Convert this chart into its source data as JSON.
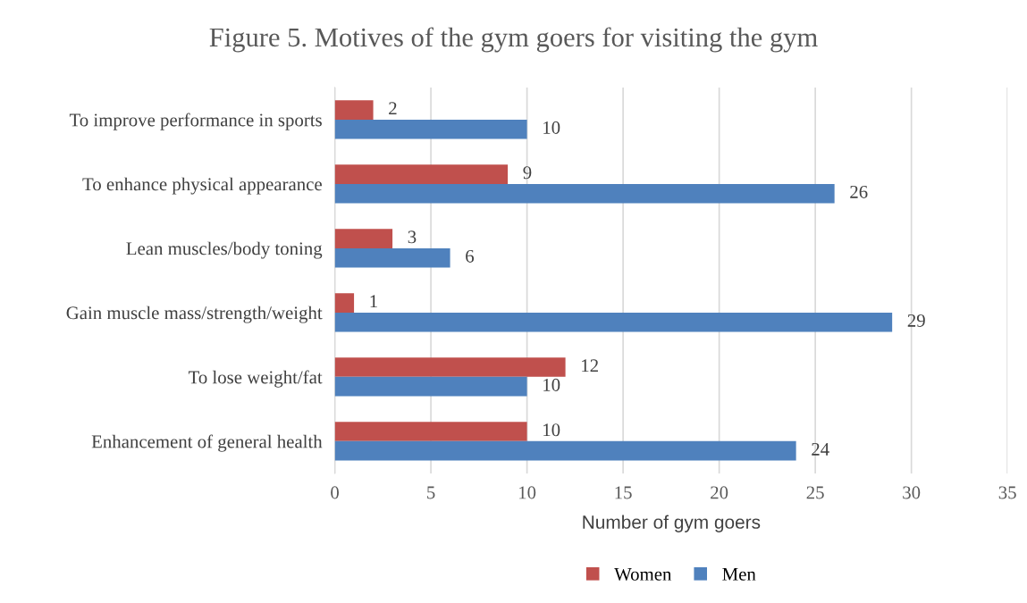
{
  "chart_data": {
    "type": "bar",
    "orientation": "horizontal",
    "title": "Figure 5. Motives of the gym goers for visiting the gym",
    "xlabel": "Number of gym goers",
    "categories": [
      "To improve performance in sports",
      "To enhance physical appearance",
      "Lean muscles/body toning",
      "Gain muscle mass/strength/weight",
      "To lose weight/fat",
      "Enhancement of general health"
    ],
    "series": [
      {
        "name": "Women",
        "color": "#c0504d",
        "values": [
          2,
          9,
          3,
          1,
          12,
          10
        ]
      },
      {
        "name": "Men",
        "color": "#4f81bd",
        "values": [
          10,
          26,
          6,
          29,
          10,
          24
        ]
      }
    ],
    "xlim": [
      0,
      35
    ],
    "xticks": [
      0,
      5,
      10,
      15,
      20,
      25,
      30,
      35
    ],
    "grid": "x",
    "legend": "bottom",
    "data_labels": true
  }
}
